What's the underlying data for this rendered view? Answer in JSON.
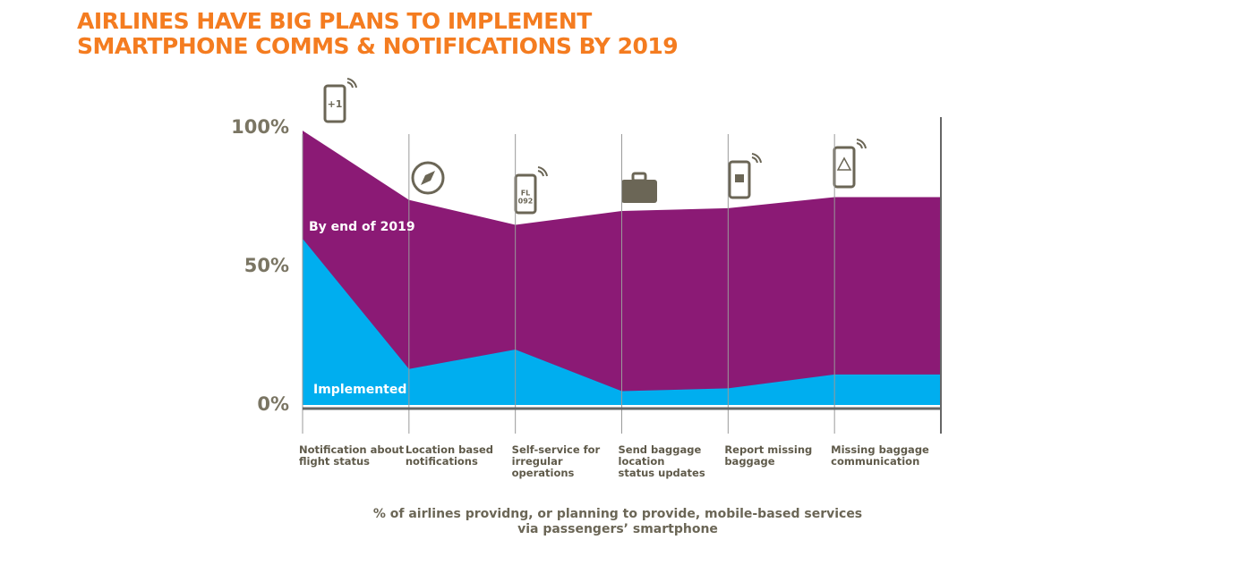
{
  "chart_data": {
    "type": "area",
    "title": "AIRLINES HAVE BIG PLANS TO IMPLEMENT\nSMARTPHONE COMMS & NOTIFICATIONS BY 2019",
    "subtitle": "% of airlines providng, or planning to provide, mobile-based services\nvia passengers’ smartphone",
    "categories": [
      "Notification about\nflight status",
      "Location based\nnotifications",
      "Self-service for\nirregular\noperations",
      "Send baggage\nlocation\nstatus updates",
      "Report missing\nbaggage",
      "Missing baggage\ncommunication"
    ],
    "series": [
      {
        "name": "By end of 2019",
        "color": "#8b1a75",
        "values": [
          99,
          74,
          65,
          70,
          71,
          75
        ]
      },
      {
        "name": "Implemented",
        "color": "#00aeef",
        "values": [
          60,
          13,
          20,
          5,
          6,
          11
        ]
      }
    ],
    "ylim": [
      0,
      100
    ],
    "yticks": [
      {
        "value": 0,
        "label": "0%"
      },
      {
        "value": 50,
        "label": "50%"
      },
      {
        "value": 100,
        "label": "100%"
      }
    ]
  }
}
